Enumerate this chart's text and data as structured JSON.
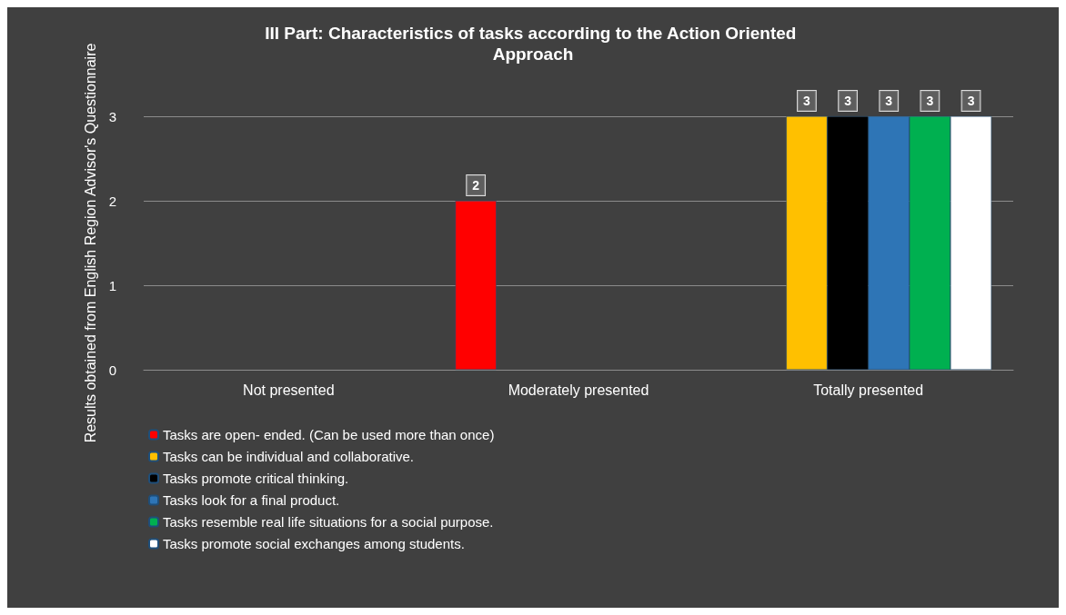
{
  "chart_data": {
    "type": "bar",
    "title": "III Part: Characteristics of tasks according to the Action Oriented Approach",
    "ylabel": "Results obtained from English Region Advisor's Questionnaire",
    "categories": [
      "Not presented",
      "Moderately presented",
      "Totally presented"
    ],
    "series": [
      {
        "name": "Tasks are open- ended. (Can be used more than once)",
        "color": "#ff0000",
        "values": [
          null,
          2,
          null
        ]
      },
      {
        "name": "Tasks can be individual and collaborative.",
        "color": "#ffc000",
        "values": [
          null,
          null,
          3
        ]
      },
      {
        "name": "Tasks promote critical thinking.",
        "color": "#000000",
        "values": [
          null,
          null,
          3
        ]
      },
      {
        "name": "Tasks look for a final product.",
        "color": "#2e75b6",
        "values": [
          null,
          null,
          3
        ]
      },
      {
        "name": "Tasks resemble real life situations for a social purpose.",
        "color": "#00b050",
        "values": [
          null,
          null,
          3
        ]
      },
      {
        "name": "Tasks promote social exchanges among students.",
        "color": "#ffffff",
        "values": [
          null,
          null,
          3
        ]
      }
    ],
    "ylim": [
      0,
      3
    ],
    "yticks": [
      0,
      1,
      2,
      3
    ],
    "grid": "y",
    "legend": "bottom",
    "data_labels": true
  }
}
